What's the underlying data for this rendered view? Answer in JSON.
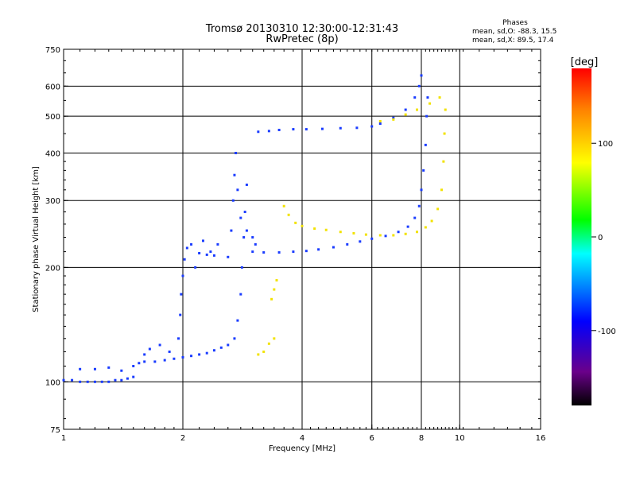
{
  "chart_data": {
    "type": "scatter",
    "title": "Tromsø 20130310 12:30:00-12:31:43",
    "subtitle": "RwPretec (8p)",
    "phases": {
      "heading": "Phases",
      "line_o": "mean, sd,O: -88.3, 15.5",
      "line_x": "mean, sd,X:  89.5, 17.4"
    },
    "xlabel": "Frequency [MHz]",
    "ylabel": "Stationary phase Virtual Height [km]",
    "x_scale": "log",
    "y_scale": "log",
    "xlim": [
      1,
      16
    ],
    "ylim": [
      75,
      750
    ],
    "xticks": [
      1,
      2,
      4,
      6,
      8,
      10,
      16
    ],
    "xtick_labels": [
      "1",
      "2",
      "4",
      "6",
      "8",
      "10",
      "16"
    ],
    "yticks": [
      75,
      100,
      200,
      300,
      400,
      500,
      600,
      750
    ],
    "ytick_labels": [
      "75",
      "100",
      "200",
      "300",
      "400",
      "500",
      "600",
      "750"
    ],
    "xgrid": [
      2,
      4,
      6,
      8,
      10
    ],
    "ygrid": [
      100,
      200,
      300,
      400,
      500,
      600
    ],
    "grid": true,
    "colorbar": {
      "label": "[deg]",
      "range": [
        -180,
        180
      ],
      "ticks": [
        100,
        0,
        -100
      ],
      "tick_labels": [
        "100",
        "0",
        "-100"
      ],
      "colors": [
        "#000000",
        "#6a008a",
        "#0000ff",
        "#00ffff",
        "#00ff00",
        "#ffff00",
        "#ff8000",
        "#ff0000"
      ]
    },
    "series": [
      {
        "name": "O",
        "phase_deg": -95,
        "color": "#1a3cff",
        "points": [
          [
            1.0,
            101
          ],
          [
            1.05,
            101
          ],
          [
            1.1,
            100
          ],
          [
            1.15,
            100
          ],
          [
            1.2,
            100
          ],
          [
            1.25,
            100
          ],
          [
            1.3,
            100
          ],
          [
            1.35,
            101
          ],
          [
            1.4,
            101
          ],
          [
            1.45,
            102
          ],
          [
            1.5,
            103
          ],
          [
            1.1,
            108
          ],
          [
            1.2,
            108
          ],
          [
            1.3,
            109
          ],
          [
            1.4,
            107
          ],
          [
            1.5,
            110
          ],
          [
            1.55,
            112
          ],
          [
            1.6,
            113
          ],
          [
            1.7,
            113
          ],
          [
            1.8,
            114
          ],
          [
            1.9,
            115
          ],
          [
            2.0,
            116
          ],
          [
            2.1,
            117
          ],
          [
            2.2,
            118
          ],
          [
            2.3,
            119
          ],
          [
            2.4,
            121
          ],
          [
            2.5,
            123
          ],
          [
            2.6,
            125
          ],
          [
            2.7,
            130
          ],
          [
            2.75,
            145
          ],
          [
            2.8,
            170
          ],
          [
            2.82,
            200
          ],
          [
            2.85,
            240
          ],
          [
            2.87,
            280
          ],
          [
            2.9,
            330
          ],
          [
            1.95,
            130
          ],
          [
            1.97,
            150
          ],
          [
            1.98,
            170
          ],
          [
            2.0,
            190
          ],
          [
            2.02,
            210
          ],
          [
            2.05,
            225
          ],
          [
            2.1,
            230
          ],
          [
            2.2,
            218
          ],
          [
            2.4,
            215
          ],
          [
            2.6,
            213
          ],
          [
            2.65,
            250
          ],
          [
            2.68,
            300
          ],
          [
            2.7,
            350
          ],
          [
            2.72,
            400
          ],
          [
            2.75,
            320
          ],
          [
            2.8,
            270
          ],
          [
            2.9,
            250
          ],
          [
            3.0,
            240
          ],
          [
            3.05,
            230
          ],
          [
            3.0,
            220
          ],
          [
            3.2,
            219
          ],
          [
            3.5,
            219
          ],
          [
            3.8,
            220
          ],
          [
            4.1,
            221
          ],
          [
            4.4,
            223
          ],
          [
            4.8,
            226
          ],
          [
            5.2,
            230
          ],
          [
            5.6,
            234
          ],
          [
            6.0,
            238
          ],
          [
            6.5,
            242
          ],
          [
            7.0,
            248
          ],
          [
            7.4,
            256
          ],
          [
            7.7,
            270
          ],
          [
            7.9,
            290
          ],
          [
            8.0,
            320
          ],
          [
            8.1,
            360
          ],
          [
            8.2,
            420
          ],
          [
            8.25,
            500
          ],
          [
            8.3,
            560
          ],
          [
            3.1,
            455
          ],
          [
            3.3,
            457
          ],
          [
            3.5,
            460
          ],
          [
            3.8,
            462
          ],
          [
            4.1,
            462
          ],
          [
            4.5,
            463
          ],
          [
            5.0,
            465
          ],
          [
            5.5,
            466
          ],
          [
            6.0,
            470
          ],
          [
            6.3,
            478
          ],
          [
            6.8,
            495
          ],
          [
            7.3,
            520
          ],
          [
            7.7,
            560
          ],
          [
            7.9,
            600
          ],
          [
            8.0,
            640
          ],
          [
            2.3,
            216
          ],
          [
            2.35,
            220
          ],
          [
            2.45,
            230
          ],
          [
            2.25,
            235
          ],
          [
            2.15,
            200
          ],
          [
            1.85,
            120
          ],
          [
            1.75,
            125
          ],
          [
            1.65,
            122
          ],
          [
            1.6,
            118
          ]
        ]
      },
      {
        "name": "X",
        "phase_deg": 95,
        "color": "#f2e200",
        "points": [
          [
            3.6,
            290
          ],
          [
            3.7,
            275
          ],
          [
            3.85,
            262
          ],
          [
            4.0,
            257
          ],
          [
            4.3,
            253
          ],
          [
            4.6,
            251
          ],
          [
            5.0,
            248
          ],
          [
            5.4,
            246
          ],
          [
            5.8,
            244
          ],
          [
            6.3,
            243
          ],
          [
            6.8,
            243
          ],
          [
            7.3,
            245
          ],
          [
            7.8,
            248
          ],
          [
            8.2,
            255
          ],
          [
            8.5,
            265
          ],
          [
            8.8,
            285
          ],
          [
            9.0,
            320
          ],
          [
            9.1,
            380
          ],
          [
            9.15,
            450
          ],
          [
            9.2,
            520
          ],
          [
            6.3,
            485
          ],
          [
            6.8,
            490
          ],
          [
            7.3,
            505
          ],
          [
            7.8,
            520
          ],
          [
            8.4,
            540
          ],
          [
            8.9,
            560
          ],
          [
            3.1,
            118
          ],
          [
            3.2,
            120
          ],
          [
            3.3,
            126
          ],
          [
            3.4,
            130
          ],
          [
            3.35,
            165
          ],
          [
            3.4,
            175
          ],
          [
            3.45,
            185
          ]
        ]
      }
    ]
  }
}
